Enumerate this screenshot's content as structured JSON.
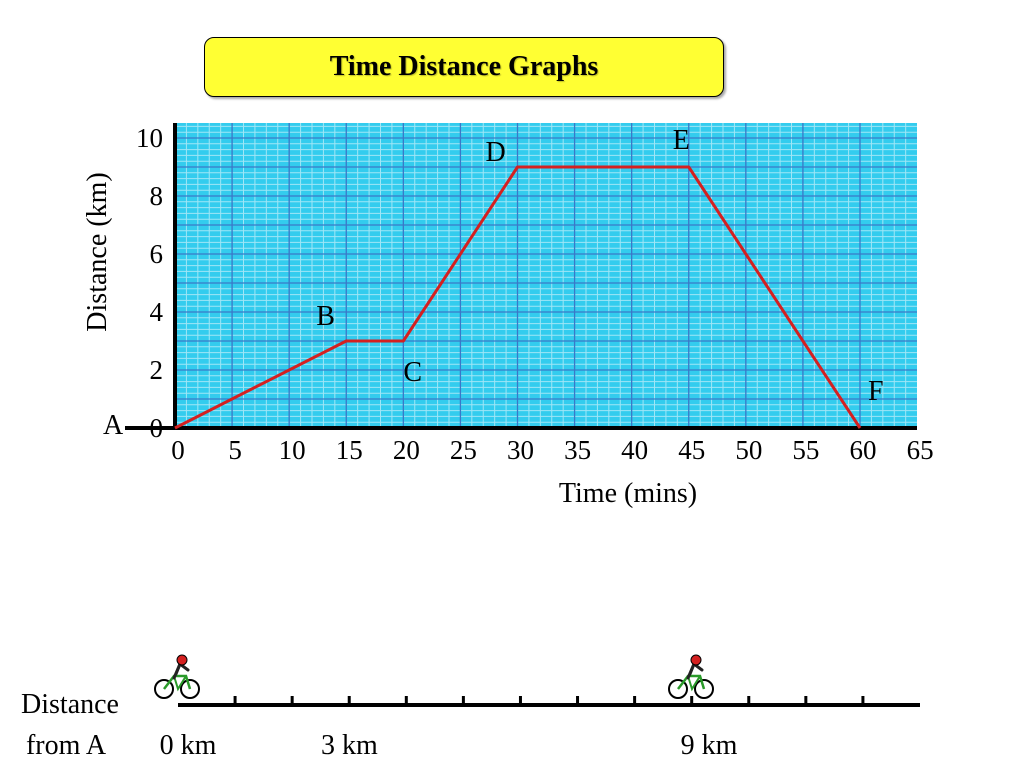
{
  "chart_data": {
    "type": "line",
    "title": "Time Distance Graphs",
    "xlabel": "Time (mins)",
    "ylabel": "Distance (km)",
    "xlim": [
      0,
      65
    ],
    "ylim": [
      0,
      10
    ],
    "x_ticks": [
      0,
      5,
      10,
      15,
      20,
      25,
      30,
      35,
      40,
      45,
      50,
      55,
      60,
      65
    ],
    "y_ticks": [
      0,
      2,
      4,
      6,
      8,
      10
    ],
    "grid": true,
    "series": [
      {
        "x": [
          0,
          15,
          20,
          30,
          45,
          60
        ],
        "y": [
          0,
          3,
          3,
          9,
          9,
          0
        ]
      }
    ],
    "annotations": [
      {
        "text": "A",
        "x": 0,
        "y": 0
      },
      {
        "text": "B",
        "x": 15,
        "y": 3
      },
      {
        "text": "C",
        "x": 20,
        "y": 3
      },
      {
        "text": "D",
        "x": 30,
        "y": 9
      },
      {
        "text": "E",
        "x": 45,
        "y": 9
      },
      {
        "text": "F",
        "x": 60,
        "y": 0
      }
    ]
  },
  "distance_line": {
    "label_line1": "Distance",
    "label_line2": "from A",
    "markers": [
      {
        "text": "0 km",
        "km": 0
      },
      {
        "text": "3 km",
        "km": 3
      },
      {
        "text": "9 km",
        "km": 9
      }
    ],
    "cyclists_km": [
      0,
      9
    ]
  },
  "colors": {
    "grid_bg": "#33ccee",
    "grid_fine": "#a0e6f6",
    "grid_major": "#3a78c8",
    "line": "#d42020",
    "title_bg": "#ffff33"
  }
}
